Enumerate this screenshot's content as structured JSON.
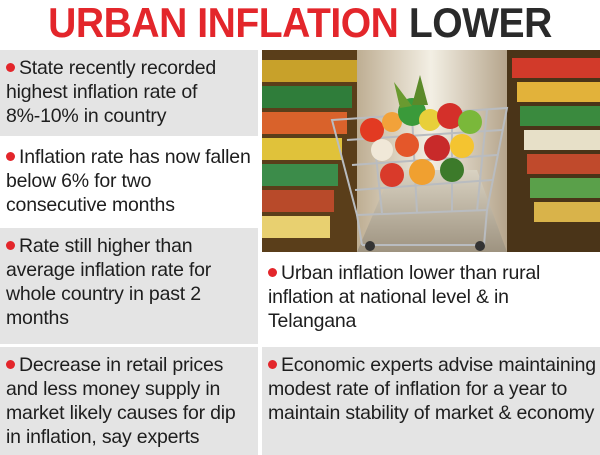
{
  "title": {
    "word1": "URBAN",
    "word2": "INFLATION",
    "word3": "LOWER"
  },
  "colors": {
    "accent": "#e3262b",
    "panel_grey": "#e4e4e4",
    "text_dark": "#1e1e1e"
  },
  "bullets": [
    "State recently recorded highest inflation rate of 8%-10% in country",
    "Inflation rate has now fallen below 6% for two consecutive months",
    "Rate still higher than average inflation rate for whole country in past 2 months",
    "Decrease in retail prices and less money supply in market likely causes for dip in inflation, say experts",
    "Urban inflation lower than rural inflation at national level & in Telangana",
    "Economic experts advise maintaining modest rate of inflation for a year to maintain stability of market & economy"
  ],
  "photo": {
    "icon": "shopping-cart-icon"
  }
}
